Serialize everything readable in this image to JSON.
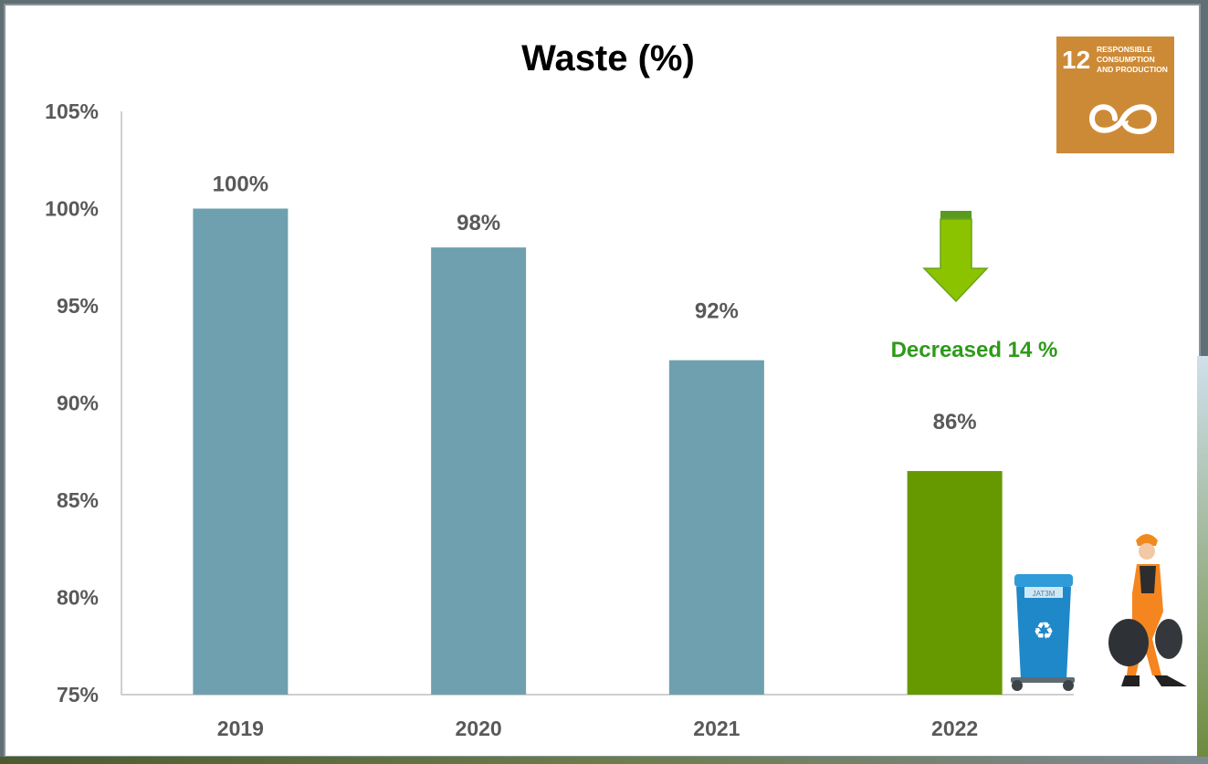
{
  "chart_data": {
    "type": "bar",
    "title": "Waste (%)",
    "xlabel": "",
    "ylabel": "",
    "categories": [
      "2019",
      "2020",
      "2021",
      "2022"
    ],
    "values": [
      100,
      98,
      92.2,
      86.5
    ],
    "data_labels": [
      "100%",
      "98%",
      "92%",
      "86%"
    ],
    "bar_colors": [
      "#6fa0b0",
      "#6fa0b0",
      "#6fa0b0",
      "#669900"
    ],
    "ylim": [
      75,
      105
    ],
    "yticks": [
      75,
      80,
      85,
      90,
      95,
      100,
      105
    ],
    "ytick_labels": [
      "75%",
      "80%",
      "85%",
      "90%",
      "95%",
      "100%",
      "105%"
    ],
    "grid": false,
    "legend": "none",
    "annotation": {
      "text": "Decreased 14 %",
      "color": "#2e9a1a",
      "arrow_color": "#8cc300",
      "arrow_icon": "down-arrow-icon"
    }
  },
  "badge": {
    "number": "12",
    "lines": [
      "RESPONSIBLE",
      "CONSUMPTION",
      "AND PRODUCTION"
    ],
    "color": "#cd8a36",
    "icon": "infinity-loop-icon"
  },
  "illustrations": {
    "bin_icon": "recycle-bin-icon",
    "bin_label": "JAT3M",
    "worker_icon": "garbage-worker-icon"
  }
}
